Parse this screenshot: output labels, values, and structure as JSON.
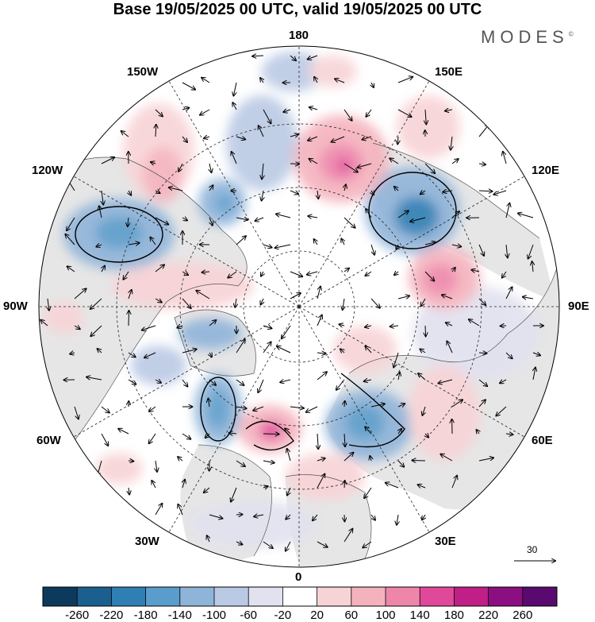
{
  "title": "Base 19/05/2025 00 UTC, valid 19/05/2025 00 UTC",
  "brand": {
    "name": "MODES",
    "mark": "©"
  },
  "longitude_labels": {
    "top": "180",
    "top_right": "150E",
    "right_upper": "120E",
    "right": "90E",
    "right_lower": "60E",
    "bottom_right": "30E",
    "bottom": "0",
    "bottom_left": "30W",
    "left_lower": "60W",
    "left": "90W",
    "left_upper": "120W",
    "top_left": "150W"
  },
  "wind_reference": {
    "value": "30"
  },
  "colorbar": {
    "labels": [
      "-260",
      "-220",
      "-180",
      "-140",
      "-100",
      "-60",
      "-20",
      "20",
      "60",
      "100",
      "140",
      "180",
      "220",
      "260"
    ],
    "colors": [
      "#0d3a5c",
      "#1b5f8e",
      "#2f7fb5",
      "#5a9ccb",
      "#8fb4d9",
      "#bac9e4",
      "#e1e1ef",
      "#ffffff",
      "#f8d3d6",
      "#f4b2bd",
      "#ee86aa",
      "#e0499a",
      "#bf1f86",
      "#8b0f80",
      "#5a0a6e"
    ]
  },
  "map": {
    "land_color": "#e6e6e6",
    "ocean_color": "#ffffff"
  }
}
